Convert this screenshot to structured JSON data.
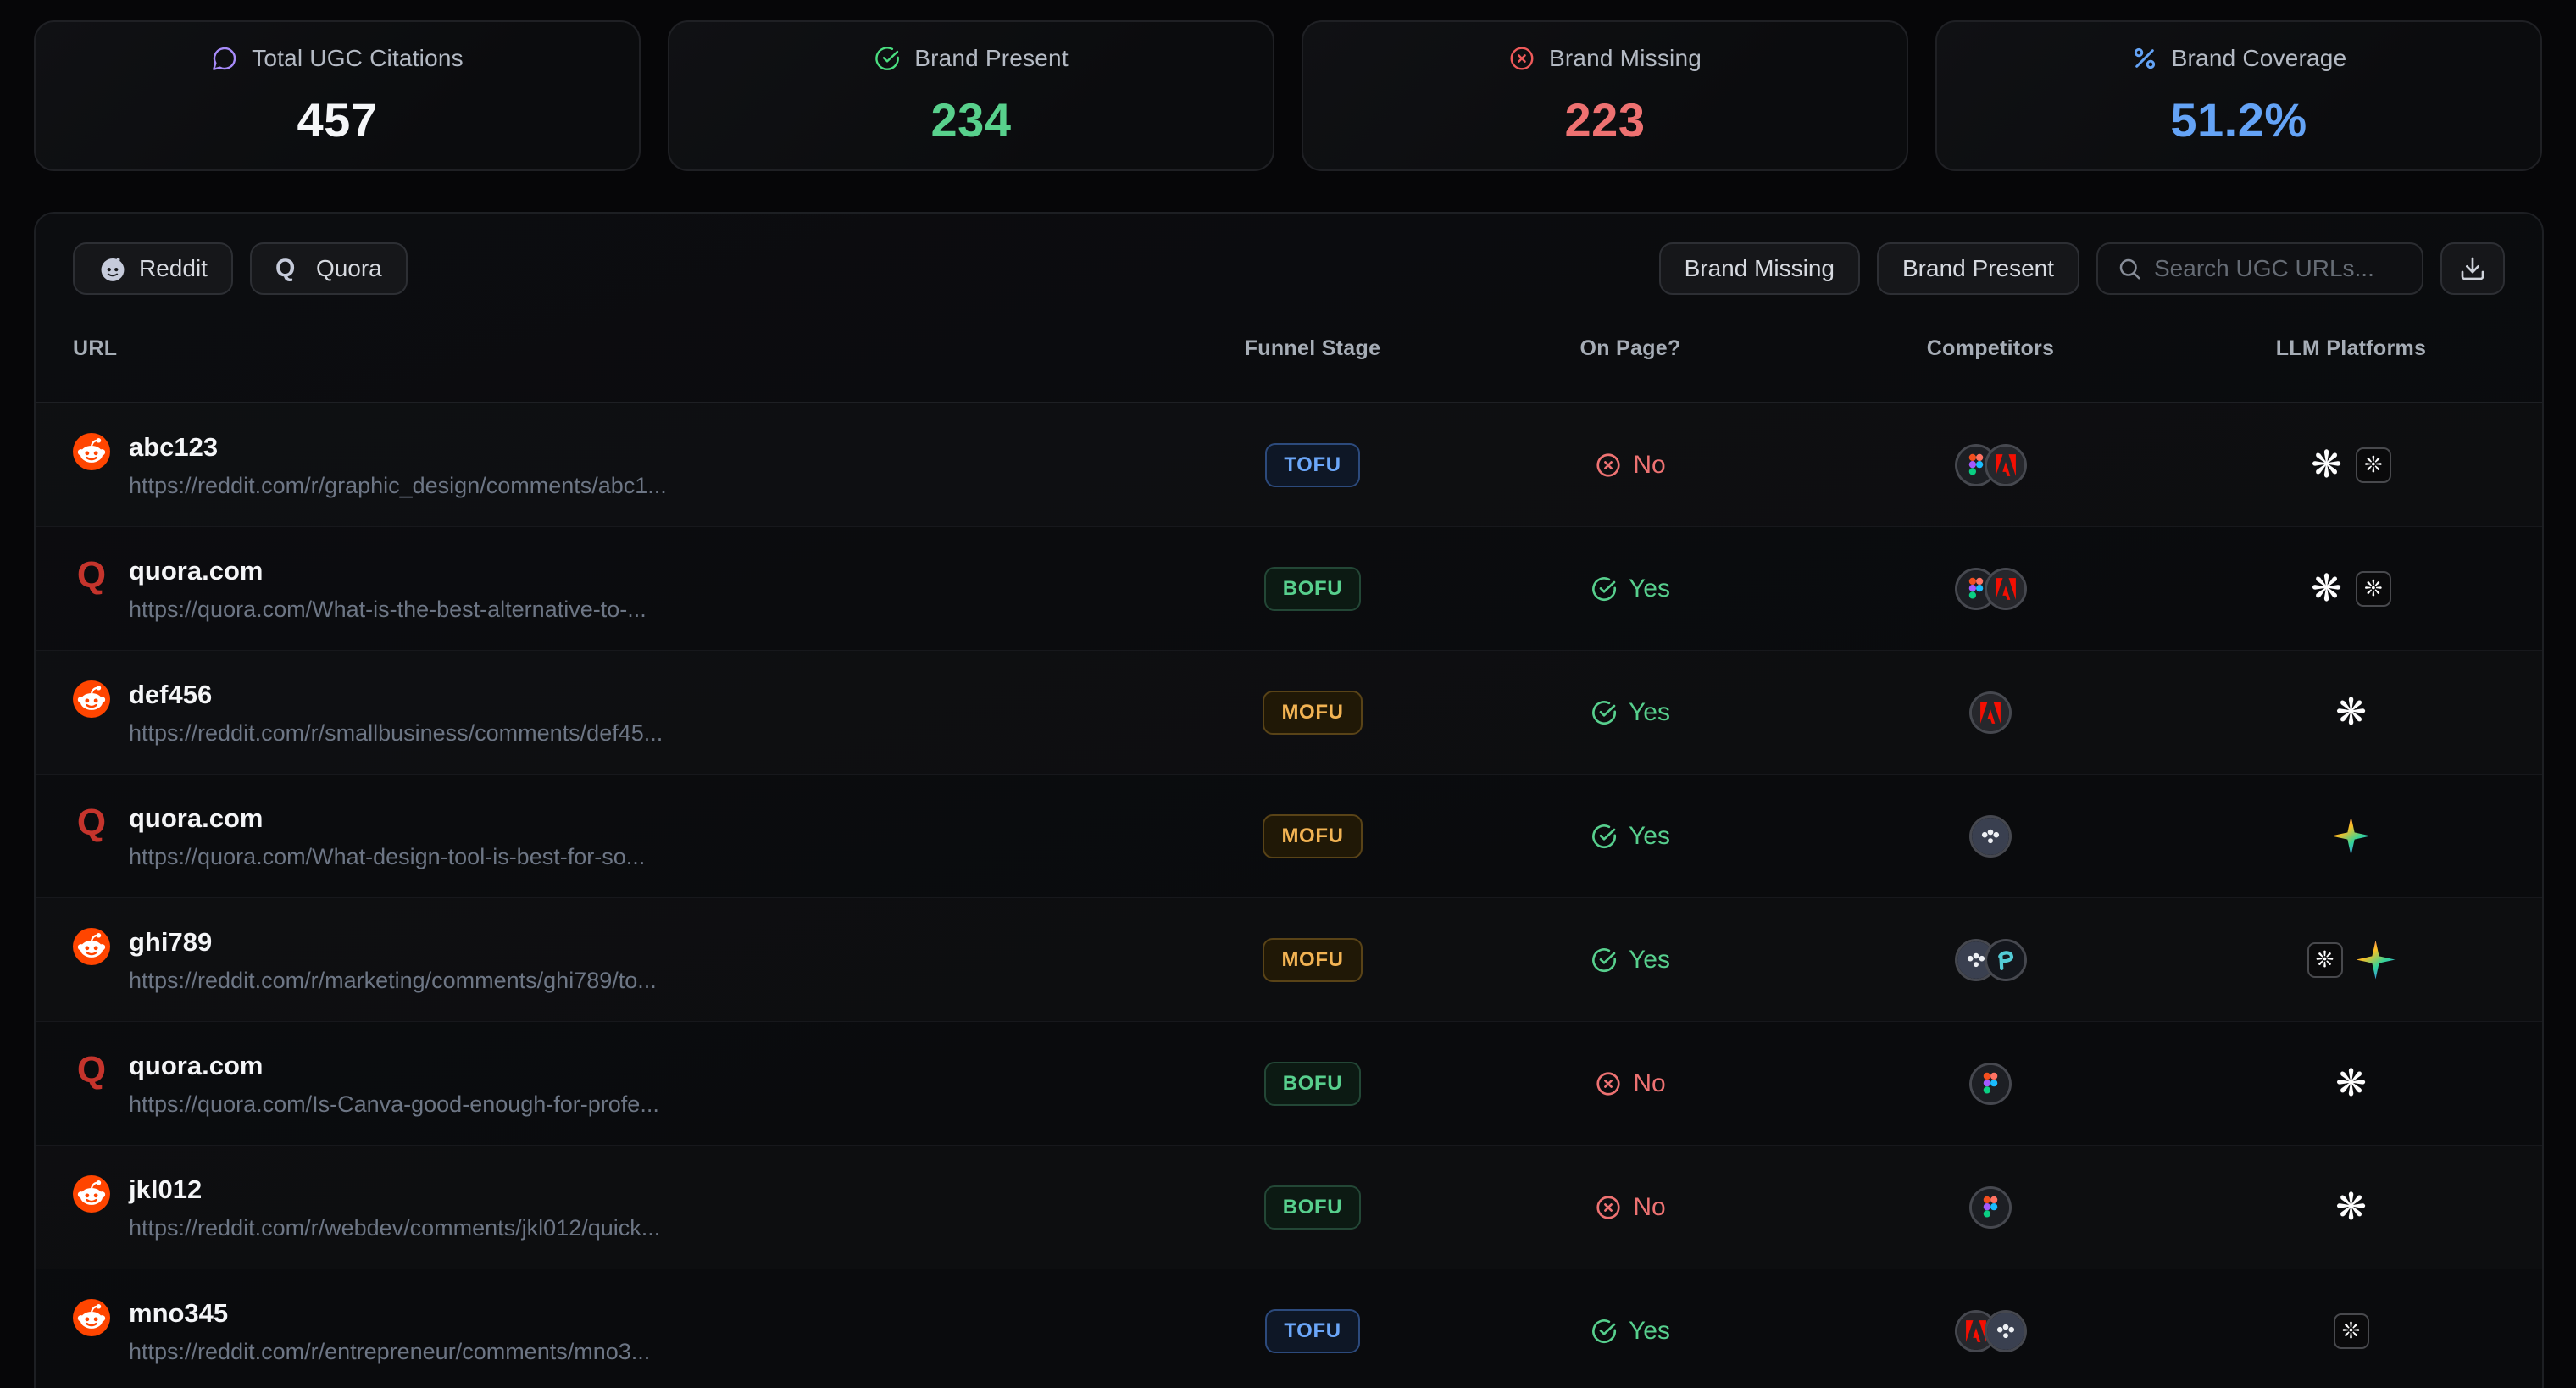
{
  "stats": [
    {
      "icon": "speech-bubble-icon",
      "label": "Total UGC Citations",
      "value": "457",
      "value_color": "#f5f6f8"
    },
    {
      "icon": "check-circle-icon",
      "label": "Brand Present",
      "value": "234",
      "value_color": "#58d08c"
    },
    {
      "icon": "x-circle-icon",
      "label": "Brand Missing",
      "value": "223",
      "value_color": "#ee7171"
    },
    {
      "icon": "percent-icon",
      "label": "Brand Coverage",
      "value": "51.2%",
      "value_color": "#64a3f6"
    }
  ],
  "toolbar": {
    "filters": [
      {
        "label": "Reddit",
        "icon": "reddit-icon"
      },
      {
        "label": "Quora",
        "icon": "quora-icon"
      }
    ],
    "actions": [
      {
        "label": "Brand Missing"
      },
      {
        "label": "Brand Present"
      }
    ],
    "search_placeholder": "Search UGC URLs...",
    "download_icon": "download-icon"
  },
  "table": {
    "columns": [
      "URL",
      "Funnel Stage",
      "On Page?",
      "Competitors",
      "LLM Platforms"
    ],
    "rows": [
      {
        "source": "reddit",
        "title": "abc123",
        "url": "https://reddit.com/r/graphic_design/comments/abc1...",
        "funnel": "TOFU",
        "on_page": "No",
        "competitors": [
          "figma",
          "adobe"
        ],
        "llms": [
          "chatgpt",
          "claude"
        ]
      },
      {
        "source": "quora",
        "title": "quora.com",
        "url": "https://quora.com/What-is-the-best-alternative-to-...",
        "funnel": "BOFU",
        "on_page": "Yes",
        "competitors": [
          "figma",
          "adobe"
        ],
        "llms": [
          "chatgpt",
          "claude"
        ]
      },
      {
        "source": "reddit",
        "title": "def456",
        "url": "https://reddit.com/r/smallbusiness/comments/def45...",
        "funnel": "MOFU",
        "on_page": "Yes",
        "competitors": [
          "adobe"
        ],
        "llms": [
          "chatgpt"
        ]
      },
      {
        "source": "quora",
        "title": "quora.com",
        "url": "https://quora.com/What-design-tool-is-best-for-so...",
        "funnel": "MOFU",
        "on_page": "Yes",
        "competitors": [
          "sketch"
        ],
        "llms": [
          "gemini"
        ]
      },
      {
        "source": "reddit",
        "title": "ghi789",
        "url": "https://reddit.com/r/marketing/comments/ghi789/to...",
        "funnel": "MOFU",
        "on_page": "Yes",
        "competitors": [
          "sketch",
          "penpot"
        ],
        "llms": [
          "claude",
          "gemini"
        ]
      },
      {
        "source": "quora",
        "title": "quora.com",
        "url": "https://quora.com/Is-Canva-good-enough-for-profe...",
        "funnel": "BOFU",
        "on_page": "No",
        "competitors": [
          "figma"
        ],
        "llms": [
          "chatgpt"
        ]
      },
      {
        "source": "reddit",
        "title": "jkl012",
        "url": "https://reddit.com/r/webdev/comments/jkl012/quick...",
        "funnel": "BOFU",
        "on_page": "No",
        "competitors": [
          "figma"
        ],
        "llms": [
          "chatgpt"
        ]
      },
      {
        "source": "reddit",
        "title": "mno345",
        "url": "https://reddit.com/r/entrepreneur/comments/mno3...",
        "funnel": "TOFU",
        "on_page": "Yes",
        "competitors": [
          "adobe",
          "sketch"
        ],
        "llms": [
          "claude"
        ]
      }
    ]
  },
  "badge_colors": {
    "TOFU": "#6ba6f8",
    "BOFU": "#57cf8d",
    "MOFU": "#f2b353"
  },
  "status_colors": {
    "Yes": "#57cf8d",
    "No": "#ee7272"
  }
}
